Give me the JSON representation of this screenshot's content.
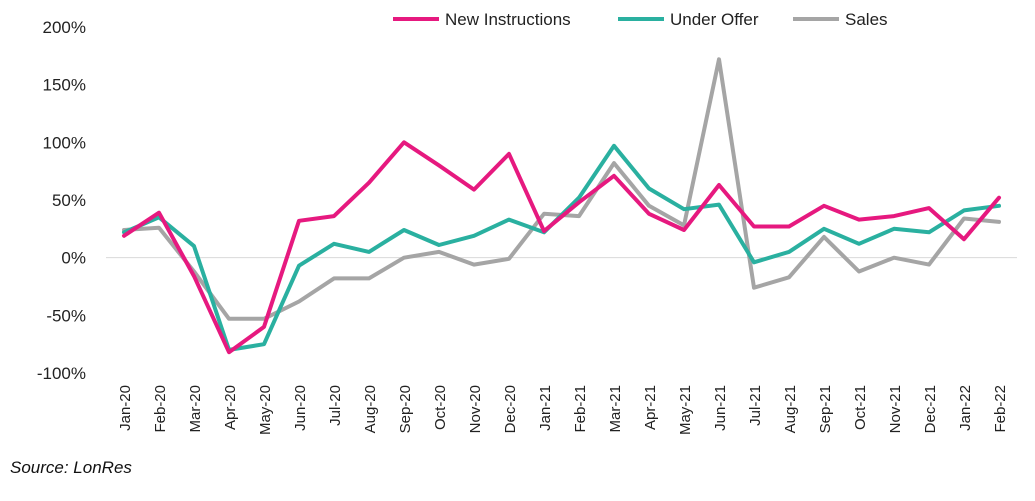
{
  "chart_data": {
    "type": "line",
    "categories": [
      "Jan-20",
      "Feb-20",
      "Mar-20",
      "Apr-20",
      "May-20",
      "Jun-20",
      "Jul-20",
      "Aug-20",
      "Sep-20",
      "Oct-20",
      "Nov-20",
      "Dec-20",
      "Jan-21",
      "Feb-21",
      "Mar-21",
      "Apr-21",
      "May-21",
      "Jun-21",
      "Jul-21",
      "Aug-21",
      "Sep-21",
      "Oct-21",
      "Nov-21",
      "Dec-21",
      "Jan-22",
      "Feb-22"
    ],
    "series": [
      {
        "name": "New Instructions",
        "color": "#e6197f",
        "values": [
          19,
          39,
          -16,
          -82,
          -60,
          32,
          36,
          65,
          100,
          80,
          59,
          90,
          23,
          48,
          71,
          38,
          24,
          63,
          27,
          27,
          45,
          33,
          36,
          43,
          16,
          52
        ]
      },
      {
        "name": "Under Offer",
        "color": "#2ab0a0",
        "values": [
          22,
          35,
          10,
          -80,
          -75,
          -7,
          12,
          5,
          24,
          11,
          19,
          33,
          22,
          52,
          97,
          60,
          42,
          46,
          -4,
          5,
          25,
          12,
          25,
          22,
          41,
          45
        ]
      },
      {
        "name": "Sales",
        "color": "#a5a5a5",
        "values": [
          24,
          26,
          -12,
          -53,
          -53,
          -38,
          -18,
          -18,
          0,
          5,
          -6,
          -1,
          38,
          36,
          82,
          45,
          28,
          172,
          -26,
          -17,
          18,
          -12,
          0,
          -6,
          34,
          31
        ]
      }
    ],
    "yticks": [
      "200%",
      "150%",
      "100%",
      "50%",
      "0%",
      "-50%",
      "-100%"
    ],
    "ylim": [
      -100,
      200
    ],
    "legend_position": "top",
    "source": "Source: LonRes"
  }
}
